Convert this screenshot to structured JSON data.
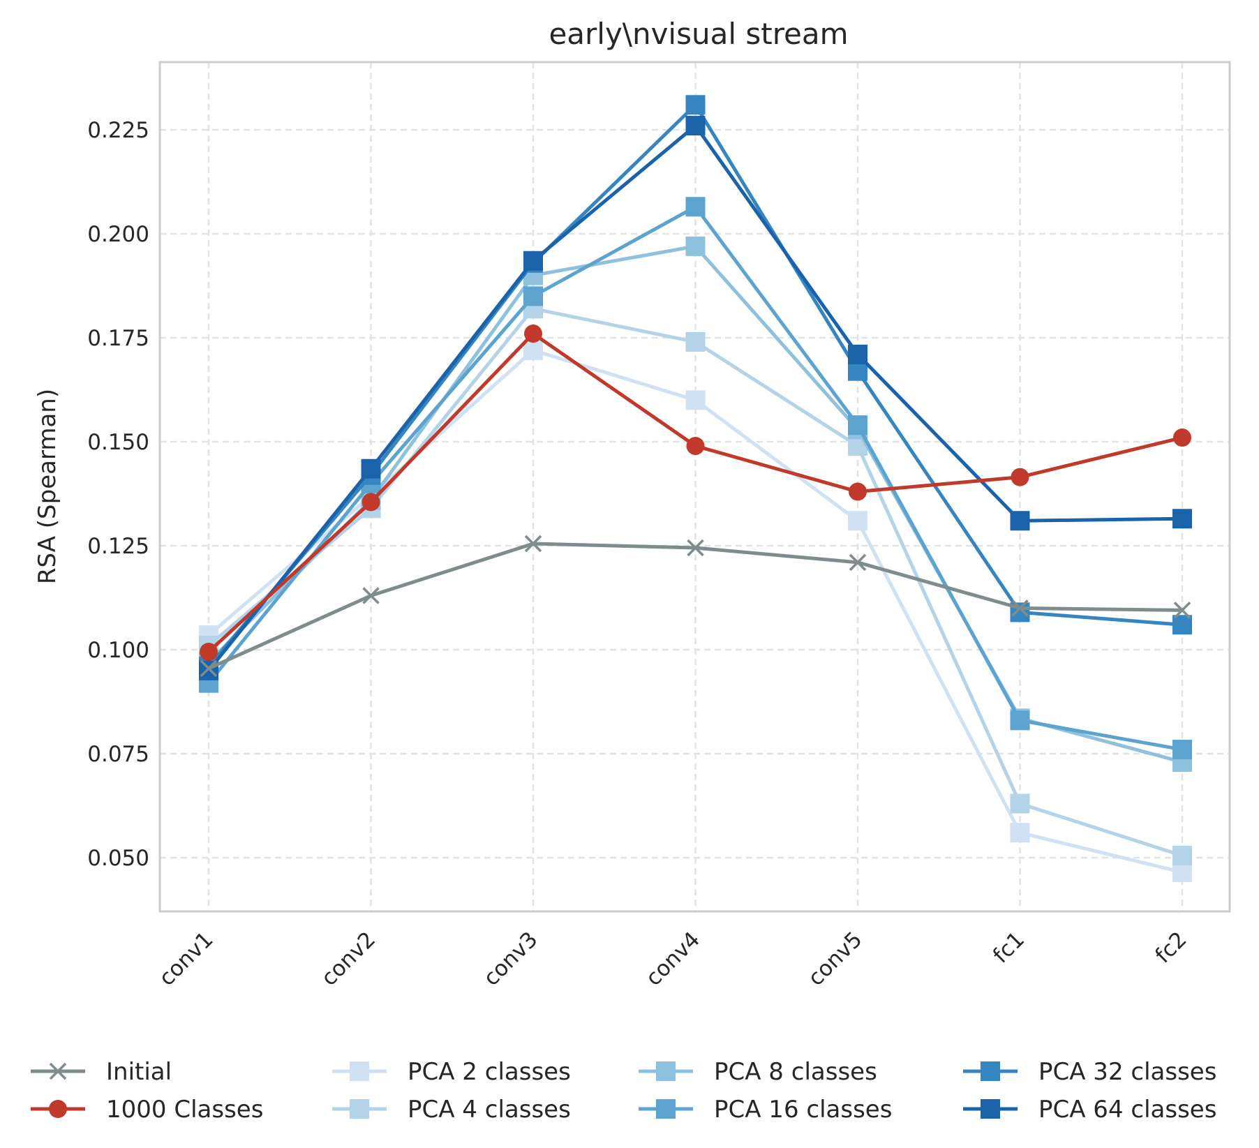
{
  "chart_data": {
    "type": "line",
    "title": "early\\nvisual stream",
    "xlabel": "",
    "ylabel": "RSA (Spearman)",
    "categories": [
      "conv1",
      "conv2",
      "conv3",
      "conv4",
      "conv5",
      "fc1",
      "fc2"
    ],
    "y_ticks": [
      "0.050",
      "0.075",
      "0.100",
      "0.125",
      "0.150",
      "0.175",
      "0.200",
      "0.225"
    ],
    "ylim": [
      0.0375,
      0.2405
    ],
    "grid": true,
    "legend_position": "bottom",
    "series": [
      {
        "name": "Initial",
        "marker": "x",
        "color": "#7f8c8d",
        "values": [
          0.0955,
          0.113,
          0.1255,
          0.1245,
          0.121,
          0.11,
          0.1095
        ]
      },
      {
        "name": "1000 Classes",
        "marker": "circle",
        "color": "#c0392b",
        "values": [
          0.0995,
          0.1355,
          0.176,
          0.149,
          0.138,
          0.1415,
          0.151
        ]
      },
      {
        "name": "PCA 2 classes",
        "marker": "square",
        "color": "#cfe1f2",
        "values": [
          0.1035,
          0.137,
          0.172,
          0.16,
          0.131,
          0.056,
          0.0465
        ]
      },
      {
        "name": "PCA 4 classes",
        "marker": "square",
        "color": "#b3d3e8",
        "values": [
          0.101,
          0.134,
          0.182,
          0.174,
          0.149,
          0.063,
          0.0505
        ]
      },
      {
        "name": "PCA 8 classes",
        "marker": "square",
        "color": "#8dc1dd",
        "values": [
          0.097,
          0.136,
          0.19,
          0.197,
          0.153,
          0.0835,
          0.073
        ]
      },
      {
        "name": "PCA 16 classes",
        "marker": "square",
        "color": "#5ca3d0",
        "values": [
          0.092,
          0.14,
          0.185,
          0.2065,
          0.154,
          0.083,
          0.076
        ]
      },
      {
        "name": "PCA 32 classes",
        "marker": "square",
        "color": "#3585c1",
        "values": [
          0.096,
          0.142,
          0.193,
          0.231,
          0.167,
          0.109,
          0.106
        ]
      },
      {
        "name": "PCA 64 classes",
        "marker": "square",
        "color": "#1a63ab",
        "values": [
          0.095,
          0.1435,
          0.1935,
          0.226,
          0.171,
          0.131,
          0.1315
        ]
      }
    ]
  }
}
